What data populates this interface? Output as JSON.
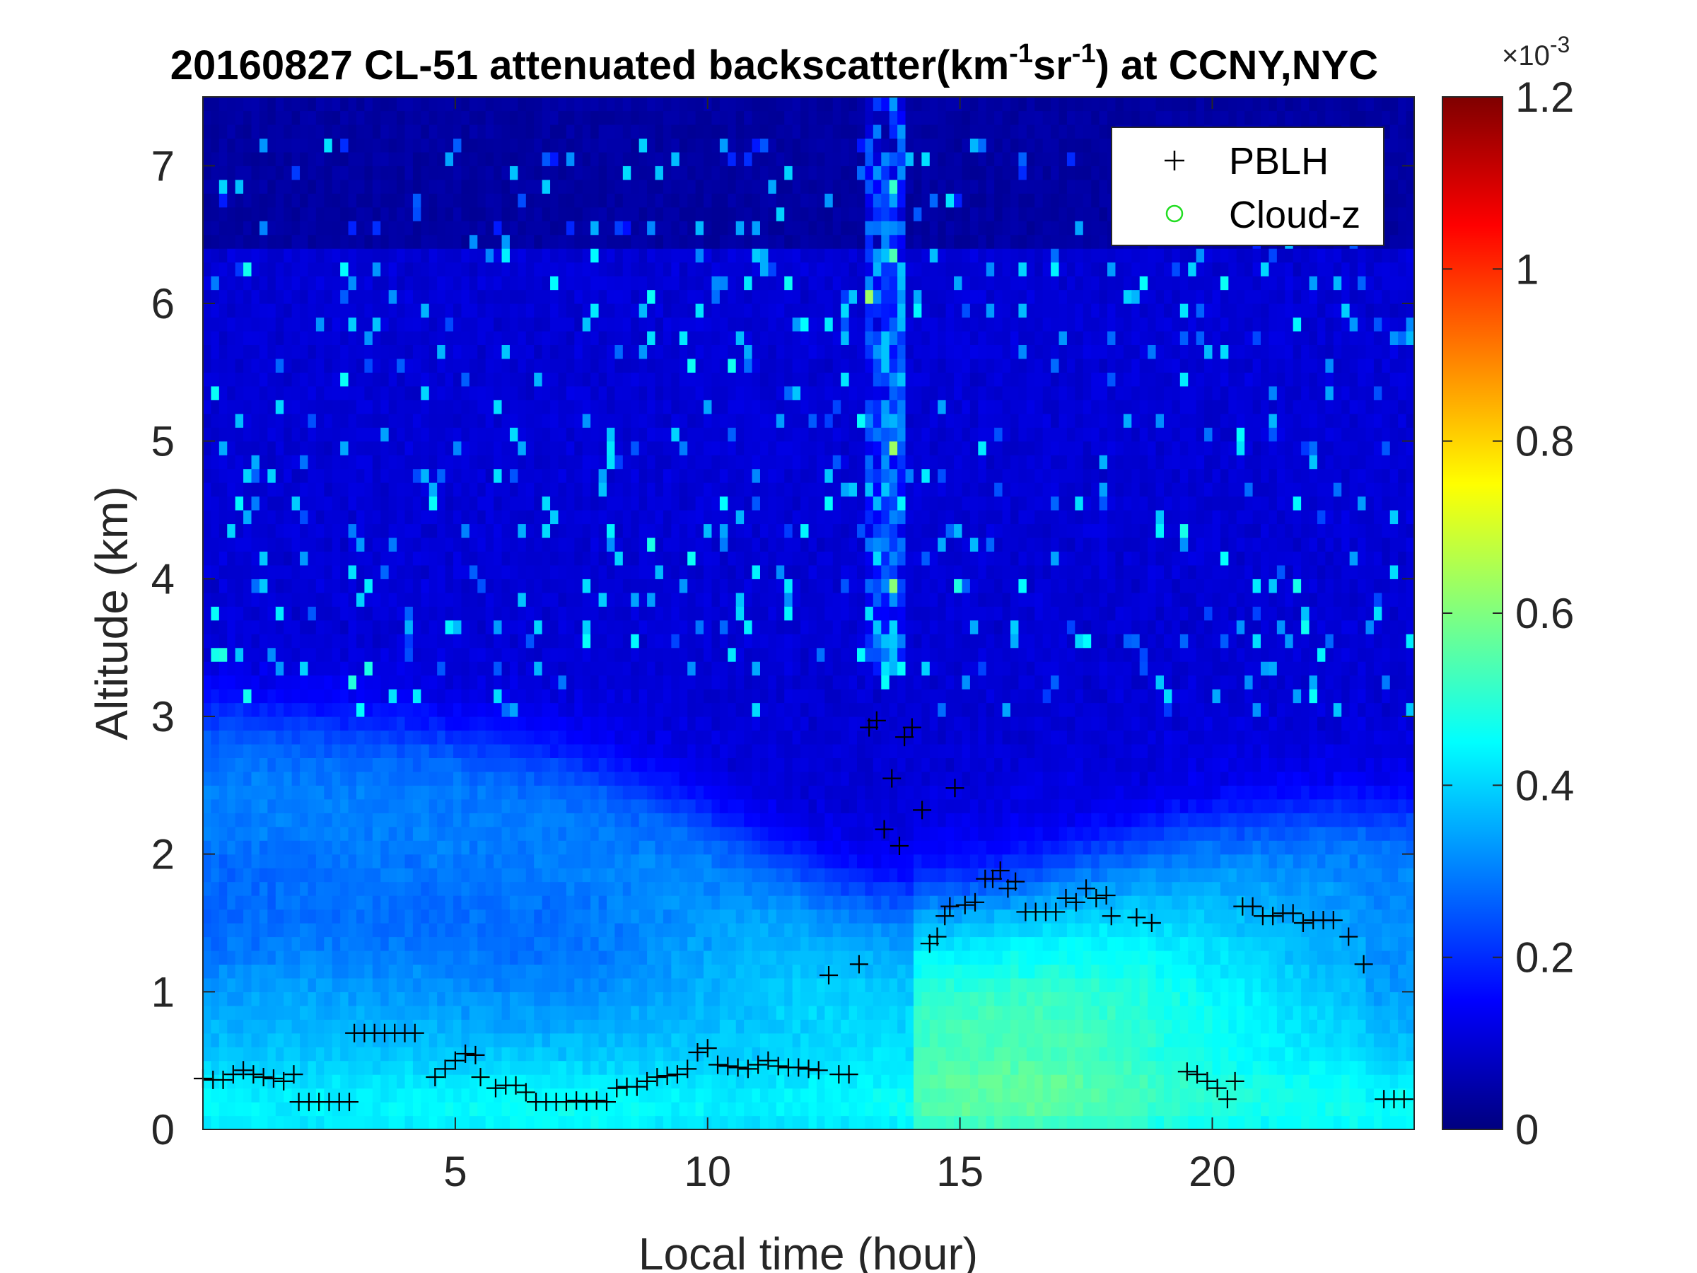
{
  "chart_data": {
    "type": "heatmap",
    "title_main": "20160827  CL-51 attenuated backscatter(km",
    "title_sup1": "-1",
    "title_mid": "sr",
    "title_sup2": "-1",
    "title_end": ") at CCNY,NYC",
    "xlabel": "Local time (hour)",
    "ylabel": "Altitude (km)",
    "xlim": [
      0,
      24
    ],
    "ylim": [
      0,
      7.5
    ],
    "xticks": [
      "5",
      "10",
      "15",
      "20"
    ],
    "xtick_values": [
      5,
      10,
      15,
      20
    ],
    "yticks": [
      "0",
      "1",
      "2",
      "3",
      "4",
      "5",
      "6",
      "7"
    ],
    "ytick_values": [
      0,
      1,
      2,
      3,
      4,
      5,
      6,
      7
    ],
    "colorbar": {
      "range": [
        0,
        1.2
      ],
      "ticks": [
        "0",
        "0.2",
        "0.4",
        "0.6",
        "0.8",
        "1",
        "1.2"
      ],
      "tick_values": [
        0,
        0.2,
        0.4,
        0.6,
        0.8,
        1.0,
        1.2
      ],
      "exponent_base": "×10",
      "exponent": "-3",
      "colormap": "jet"
    },
    "legend": {
      "position": "top-right",
      "entries": [
        {
          "label": "PBLH",
          "marker": "+",
          "color": "#000000"
        },
        {
          "label": "Cloud-z",
          "marker": "o",
          "color": "#22dd22"
        }
      ]
    },
    "series": [
      {
        "name": "PBLH",
        "points": [
          [
            0.0,
            0.37
          ],
          [
            0.2,
            0.36
          ],
          [
            0.4,
            0.36
          ],
          [
            0.6,
            0.4
          ],
          [
            0.8,
            0.43
          ],
          [
            1.0,
            0.4
          ],
          [
            1.2,
            0.38
          ],
          [
            1.4,
            0.37
          ],
          [
            1.6,
            0.35
          ],
          [
            1.8,
            0.4
          ],
          [
            1.9,
            0.2
          ],
          [
            2.1,
            0.2
          ],
          [
            2.3,
            0.2
          ],
          [
            2.5,
            0.2
          ],
          [
            2.7,
            0.2
          ],
          [
            2.9,
            0.2
          ],
          [
            3.0,
            0.7
          ],
          [
            3.2,
            0.7
          ],
          [
            3.4,
            0.7
          ],
          [
            3.6,
            0.7
          ],
          [
            3.8,
            0.7
          ],
          [
            4.0,
            0.7
          ],
          [
            4.2,
            0.7
          ],
          [
            4.6,
            0.38
          ],
          [
            4.8,
            0.44
          ],
          [
            5.0,
            0.5
          ],
          [
            5.2,
            0.55
          ],
          [
            5.4,
            0.54
          ],
          [
            5.5,
            0.38
          ],
          [
            5.8,
            0.3
          ],
          [
            6.0,
            0.32
          ],
          [
            6.2,
            0.32
          ],
          [
            6.4,
            0.27
          ],
          [
            6.6,
            0.2
          ],
          [
            6.8,
            0.2
          ],
          [
            7.0,
            0.2
          ],
          [
            7.2,
            0.2
          ],
          [
            7.4,
            0.21
          ],
          [
            7.6,
            0.2
          ],
          [
            7.8,
            0.21
          ],
          [
            8.0,
            0.2
          ],
          [
            8.2,
            0.3
          ],
          [
            8.4,
            0.31
          ],
          [
            8.6,
            0.31
          ],
          [
            8.8,
            0.35
          ],
          [
            9.0,
            0.38
          ],
          [
            9.2,
            0.39
          ],
          [
            9.4,
            0.4
          ],
          [
            9.6,
            0.44
          ],
          [
            9.8,
            0.56
          ],
          [
            10.0,
            0.59
          ],
          [
            10.2,
            0.47
          ],
          [
            10.4,
            0.46
          ],
          [
            10.6,
            0.45
          ],
          [
            10.8,
            0.44
          ],
          [
            11.0,
            0.47
          ],
          [
            11.2,
            0.5
          ],
          [
            11.4,
            0.46
          ],
          [
            11.6,
            0.45
          ],
          [
            11.8,
            0.45
          ],
          [
            12.0,
            0.44
          ],
          [
            12.2,
            0.43
          ],
          [
            12.4,
            1.12
          ],
          [
            12.6,
            0.4
          ],
          [
            12.8,
            0.4
          ],
          [
            13.0,
            1.2
          ],
          [
            13.2,
            2.92
          ],
          [
            13.35,
            2.97
          ],
          [
            13.5,
            2.18
          ],
          [
            13.65,
            2.55
          ],
          [
            13.8,
            2.06
          ],
          [
            13.9,
            2.85
          ],
          [
            14.05,
            2.92
          ],
          [
            14.25,
            2.32
          ],
          [
            14.4,
            1.35
          ],
          [
            14.55,
            1.4
          ],
          [
            14.7,
            1.55
          ],
          [
            14.8,
            1.62
          ],
          [
            14.9,
            2.48
          ],
          [
            15.1,
            1.63
          ],
          [
            15.3,
            1.65
          ],
          [
            15.5,
            1.82
          ],
          [
            15.65,
            1.82
          ],
          [
            15.8,
            1.88
          ],
          [
            15.95,
            1.75
          ],
          [
            16.1,
            1.8
          ],
          [
            16.3,
            1.58
          ],
          [
            16.5,
            1.58
          ],
          [
            16.7,
            1.58
          ],
          [
            16.9,
            1.58
          ],
          [
            17.1,
            1.68
          ],
          [
            17.3,
            1.65
          ],
          [
            17.5,
            1.75
          ],
          [
            17.7,
            1.68
          ],
          [
            17.9,
            1.7
          ],
          [
            18.0,
            1.55
          ],
          [
            18.5,
            1.54
          ],
          [
            18.8,
            1.5
          ],
          [
            19.5,
            0.42
          ],
          [
            19.7,
            0.4
          ],
          [
            19.9,
            0.35
          ],
          [
            20.1,
            0.3
          ],
          [
            20.3,
            0.22
          ],
          [
            20.45,
            0.35
          ],
          [
            20.6,
            1.62
          ],
          [
            20.8,
            1.62
          ],
          [
            21.0,
            1.55
          ],
          [
            21.2,
            1.55
          ],
          [
            21.4,
            1.57
          ],
          [
            21.6,
            1.57
          ],
          [
            21.8,
            1.5
          ],
          [
            22.0,
            1.52
          ],
          [
            22.2,
            1.52
          ],
          [
            22.4,
            1.52
          ],
          [
            22.7,
            1.4
          ],
          [
            23.0,
            1.2
          ],
          [
            23.4,
            0.22
          ],
          [
            23.6,
            0.22
          ],
          [
            23.8,
            0.22
          ]
        ]
      },
      {
        "name": "Cloud-z",
        "points": []
      }
    ]
  }
}
